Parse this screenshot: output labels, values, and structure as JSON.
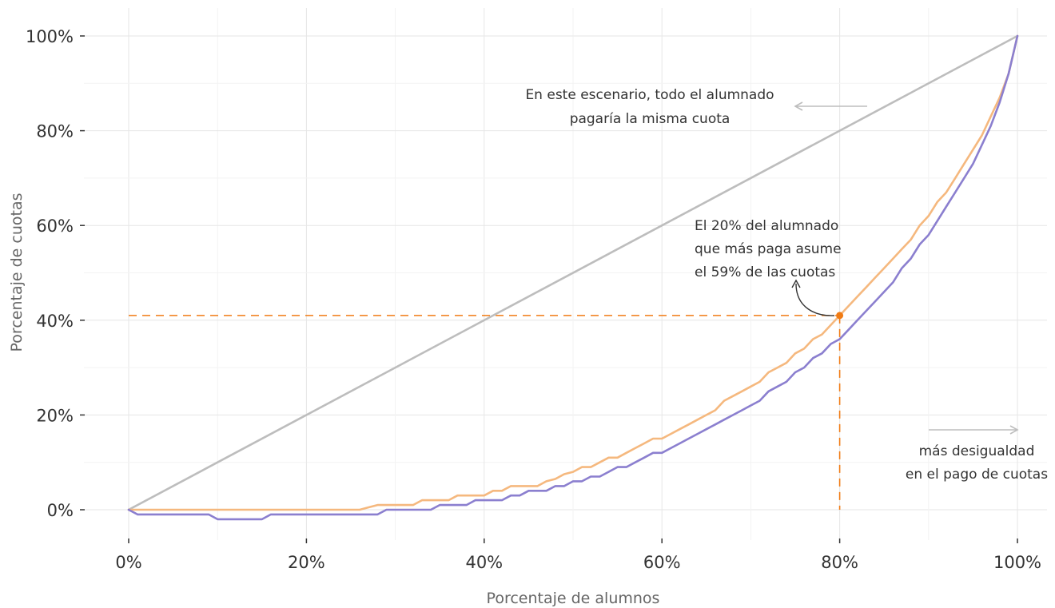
{
  "chart_data": {
    "type": "line",
    "title": "",
    "xlabel": "Porcentaje de alumnos",
    "ylabel": "Porcentaje de cuotas",
    "xlim": [
      0,
      100
    ],
    "ylim": [
      -4,
      101
    ],
    "x_ticks": [
      0,
      20,
      40,
      60,
      80,
      100
    ],
    "x_tick_labels": [
      "0%",
      "20%",
      "40%",
      "60%",
      "80%",
      "100%"
    ],
    "y_ticks": [
      0,
      20,
      40,
      60,
      80,
      100
    ],
    "y_tick_labels": [
      "0%",
      "20%",
      "40%",
      "60%",
      "80%",
      "100%"
    ],
    "grid": true,
    "series": [
      {
        "color": "#bdbdbd",
        "x": [
          0,
          100
        ],
        "y": [
          0,
          100
        ]
      },
      {
        "color": "#f5b87e",
        "x": [
          0,
          26,
          27,
          28,
          32,
          33,
          36,
          37,
          40,
          41,
          42,
          43,
          46,
          47,
          48,
          49,
          50,
          51,
          52,
          53,
          54,
          55,
          56,
          57,
          58,
          59,
          60,
          61,
          62,
          63,
          64,
          65,
          66,
          67,
          68,
          69,
          70,
          71,
          72,
          73,
          74,
          75,
          76,
          77,
          78,
          79,
          80,
          81,
          82,
          83,
          84,
          85,
          86,
          87,
          88,
          89,
          90,
          91,
          92,
          93,
          94,
          95,
          96,
          97,
          98,
          99,
          100
        ],
        "y": [
          0,
          0,
          0.5,
          1,
          1,
          2,
          2,
          3,
          3,
          4,
          4,
          5,
          5,
          6,
          6.5,
          7.5,
          8,
          9,
          9,
          10,
          11,
          11,
          12,
          13,
          14,
          15,
          15,
          16,
          17,
          18,
          19,
          20,
          21,
          23,
          24,
          25,
          26,
          27,
          29,
          30,
          31,
          33,
          34,
          36,
          37,
          39,
          41,
          43,
          45,
          47,
          49,
          51,
          53,
          55,
          57,
          60,
          62,
          65,
          67,
          70,
          73,
          76,
          79,
          83,
          87,
          92,
          100
        ]
      },
      {
        "color": "#8b7fcf",
        "x": [
          0,
          1,
          9,
          10,
          15,
          16,
          28,
          29,
          34,
          35,
          38,
          39,
          42,
          43,
          44,
          45,
          47,
          48,
          49,
          50,
          51,
          52,
          53,
          54,
          55,
          56,
          57,
          58,
          59,
          60,
          61,
          62,
          63,
          64,
          65,
          66,
          67,
          68,
          69,
          70,
          71,
          72,
          73,
          74,
          75,
          76,
          77,
          78,
          79,
          80,
          81,
          82,
          83,
          84,
          85,
          86,
          87,
          88,
          89,
          90,
          91,
          92,
          93,
          94,
          95,
          96,
          97,
          98,
          99,
          100
        ],
        "y": [
          0,
          -1,
          -1,
          -2,
          -2,
          -1,
          -1,
          0,
          0,
          1,
          1,
          2,
          2,
          3,
          3,
          4,
          4,
          5,
          5,
          6,
          6,
          7,
          7,
          8,
          9,
          9,
          10,
          11,
          12,
          12,
          13,
          14,
          15,
          16,
          17,
          18,
          19,
          20,
          21,
          22,
          23,
          25,
          26,
          27,
          29,
          30,
          32,
          33,
          35,
          36,
          38,
          40,
          42,
          44,
          46,
          48,
          51,
          53,
          56,
          58,
          61,
          64,
          67,
          70,
          73,
          77,
          81,
          86,
          92,
          100
        ]
      }
    ],
    "highlight": {
      "x": 80,
      "y": 41,
      "color": "#f07b14"
    },
    "annotations": [
      {
        "lines": [
          "En este escenario, todo el alumnado",
          "pagaría la misma cuota"
        ]
      },
      {
        "lines": [
          "El 20% del alumnado",
          "que más paga asume",
          "el 59% de las cuotas"
        ]
      },
      {
        "lines": [
          "más desigualdad",
          "en el pago de cuotas"
        ]
      }
    ]
  }
}
